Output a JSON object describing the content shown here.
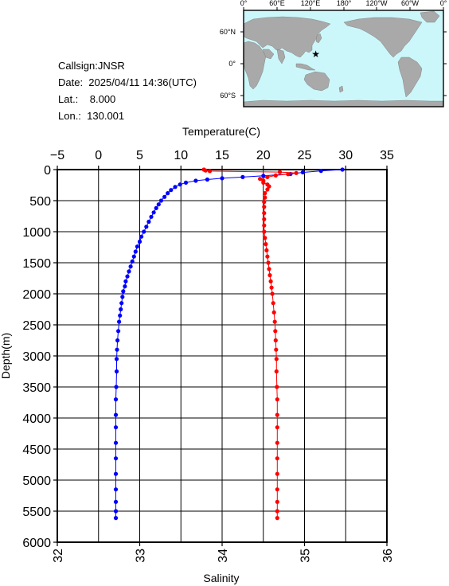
{
  "info": {
    "callsign": "Callsign:JNSR",
    "date": "Date:  2025/04/11 14:36(UTC)",
    "lat": "Lat.:    8.000",
    "lon": "Lon.:  130.001"
  },
  "map": {
    "lon_labels": [
      "0°",
      "60°E",
      "120°E",
      "180°",
      "120°W",
      "60°W",
      "0°"
    ],
    "lat_labels": [
      "60°N",
      "0°",
      "60°S"
    ],
    "ocean_color": "#ccf7fa",
    "land_color": "#a9a9a9",
    "station_marker_color": "#ff0000",
    "station_lon": 130.001,
    "station_lat": 8.0
  },
  "chart_data": {
    "type": "line",
    "top_axis": {
      "label": "Temperature(C)",
      "range": [
        -5,
        35
      ],
      "ticks": [
        "−5",
        "0",
        "5",
        "10",
        "15",
        "20",
        "25",
        "30",
        "35"
      ]
    },
    "bottom_axis": {
      "label": "Salinity",
      "range": [
        32,
        36
      ],
      "ticks": [
        "32",
        "33",
        "34",
        "35",
        "36"
      ]
    },
    "left_axis": {
      "label": "Depth(m)",
      "range": [
        0,
        6000
      ],
      "inverted": true,
      "ticks": [
        "0",
        "500",
        "1000",
        "1500",
        "2000",
        "2500",
        "3000",
        "3500",
        "4000",
        "4500",
        "5000",
        "5500",
        "6000"
      ]
    },
    "grid": true,
    "series": [
      {
        "key": "temperature",
        "axis": "top",
        "color": "#0000ff",
        "points": [
          [
            29.6,
            0
          ],
          [
            27.0,
            20
          ],
          [
            24.8,
            45
          ],
          [
            23.3,
            70
          ],
          [
            20.0,
            100
          ],
          [
            17.5,
            120
          ],
          [
            15.0,
            140
          ],
          [
            13.2,
            160
          ],
          [
            11.8,
            180
          ],
          [
            10.6,
            210
          ],
          [
            9.9,
            240
          ],
          [
            9.3,
            280
          ],
          [
            8.8,
            330
          ],
          [
            8.4,
            380
          ],
          [
            8.0,
            440
          ],
          [
            7.6,
            500
          ],
          [
            7.3,
            560
          ],
          [
            7.0,
            620
          ],
          [
            6.7,
            690
          ],
          [
            6.4,
            760
          ],
          [
            6.1,
            840
          ],
          [
            5.8,
            920
          ],
          [
            5.5,
            1000
          ],
          [
            5.2,
            1080
          ],
          [
            5.0,
            1160
          ],
          [
            4.7,
            1240
          ],
          [
            4.5,
            1320
          ],
          [
            4.3,
            1400
          ],
          [
            4.1,
            1480
          ],
          [
            3.9,
            1560
          ],
          [
            3.7,
            1640
          ],
          [
            3.5,
            1720
          ],
          [
            3.3,
            1800
          ],
          [
            3.2,
            1880
          ],
          [
            3.0,
            1960
          ],
          [
            2.9,
            2050
          ],
          [
            2.8,
            2150
          ],
          [
            2.7,
            2250
          ],
          [
            2.6,
            2350
          ],
          [
            2.5,
            2450
          ],
          [
            2.4,
            2600
          ],
          [
            2.3,
            2750
          ],
          [
            2.25,
            2900
          ],
          [
            2.2,
            3050
          ],
          [
            2.2,
            3250
          ],
          [
            2.15,
            3500
          ],
          [
            2.1,
            3700
          ],
          [
            2.1,
            3950
          ],
          [
            2.1,
            4150
          ],
          [
            2.1,
            4400
          ],
          [
            2.1,
            4650
          ],
          [
            2.1,
            4900
          ],
          [
            2.1,
            5150
          ],
          [
            2.1,
            5350
          ],
          [
            2.1,
            5500
          ],
          [
            2.1,
            5610
          ]
        ]
      },
      {
        "key": "salinity",
        "axis": "bottom",
        "color": "#ff0000",
        "points": [
          [
            33.78,
            0
          ],
          [
            33.8,
            15
          ],
          [
            33.85,
            25
          ],
          [
            34.7,
            40
          ],
          [
            34.9,
            55
          ],
          [
            34.8,
            75
          ],
          [
            34.65,
            95
          ],
          [
            34.55,
            120
          ],
          [
            34.46,
            150
          ],
          [
            34.5,
            180
          ],
          [
            34.5,
            210
          ],
          [
            34.55,
            240
          ],
          [
            34.57,
            270
          ],
          [
            34.55,
            320
          ],
          [
            34.52,
            380
          ],
          [
            34.52,
            450
          ],
          [
            34.51,
            520
          ],
          [
            34.51,
            600
          ],
          [
            34.51,
            700
          ],
          [
            34.51,
            800
          ],
          [
            34.51,
            900
          ],
          [
            34.51,
            1000
          ],
          [
            34.52,
            1100
          ],
          [
            34.53,
            1200
          ],
          [
            34.54,
            1300
          ],
          [
            34.55,
            1400
          ],
          [
            34.56,
            1500
          ],
          [
            34.57,
            1600
          ],
          [
            34.58,
            1700
          ],
          [
            34.59,
            1800
          ],
          [
            34.6,
            1900
          ],
          [
            34.61,
            2000
          ],
          [
            34.62,
            2150
          ],
          [
            34.63,
            2300
          ],
          [
            34.64,
            2450
          ],
          [
            34.645,
            2600
          ],
          [
            34.65,
            2750
          ],
          [
            34.655,
            2900
          ],
          [
            34.66,
            3050
          ],
          [
            34.66,
            3250
          ],
          [
            34.665,
            3500
          ],
          [
            34.67,
            3700
          ],
          [
            34.67,
            3950
          ],
          [
            34.67,
            4150
          ],
          [
            34.67,
            4400
          ],
          [
            34.67,
            4650
          ],
          [
            34.67,
            4900
          ],
          [
            34.67,
            5150
          ],
          [
            34.67,
            5350
          ],
          [
            34.67,
            5500
          ],
          [
            34.67,
            5610
          ]
        ]
      }
    ]
  }
}
